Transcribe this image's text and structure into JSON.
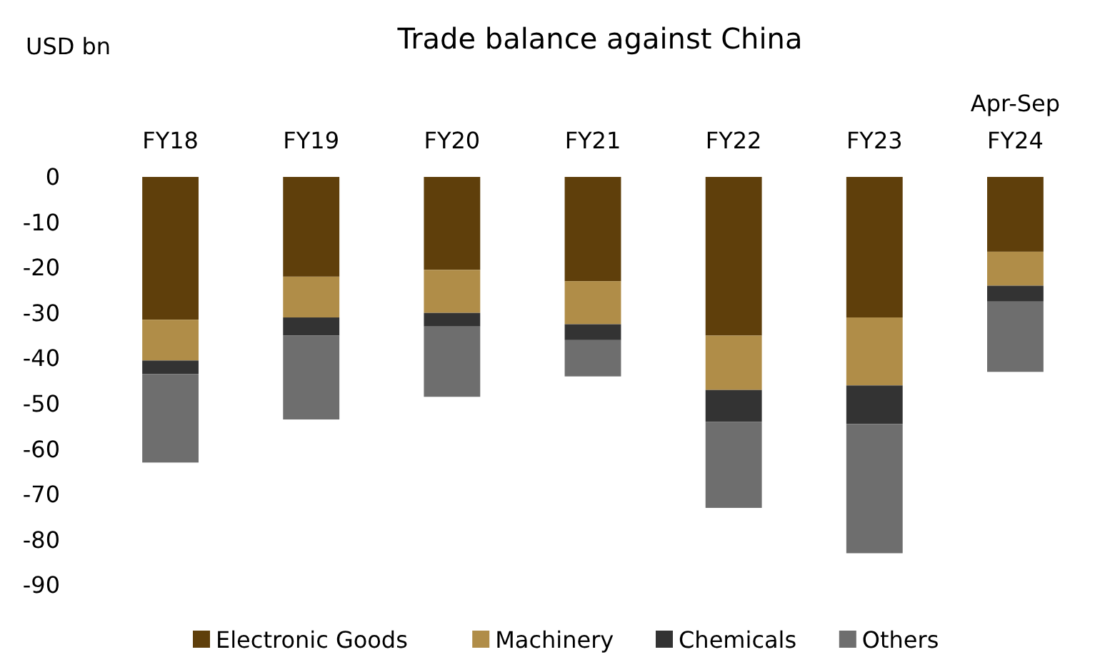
{
  "chart_data": {
    "type": "bar",
    "stacked": true,
    "title": "Trade balance against China",
    "ylabel": "USD bn",
    "categories": [
      "FY18",
      "FY19",
      "FY20",
      "FY21",
      "FY22",
      "FY23",
      "Apr-Sep\nFY24"
    ],
    "series": [
      {
        "name": "Electronic Goods",
        "color": "#5f3f0b",
        "values": [
          -31.5,
          -22,
          -20.5,
          -23,
          -35,
          -31,
          -16.5
        ]
      },
      {
        "name": "Machinery",
        "color": "#b08d48",
        "values": [
          -9,
          -9,
          -9.5,
          -9.5,
          -12,
          -15,
          -7.5
        ]
      },
      {
        "name": "Chemicals",
        "color": "#333333",
        "values": [
          -3,
          -4,
          -3,
          -3.5,
          -7,
          -8.5,
          -3.5
        ]
      },
      {
        "name": "Others",
        "color": "#6e6e6e",
        "values": [
          -19.5,
          -18.5,
          -15.5,
          -8,
          -19,
          -28.5,
          -15.5
        ]
      }
    ],
    "ylim": [
      -90,
      0
    ],
    "yticks": [
      0,
      -10,
      -20,
      -30,
      -40,
      -50,
      -60,
      -70,
      -80,
      -90
    ],
    "grid": false,
    "legend": "bottom"
  }
}
